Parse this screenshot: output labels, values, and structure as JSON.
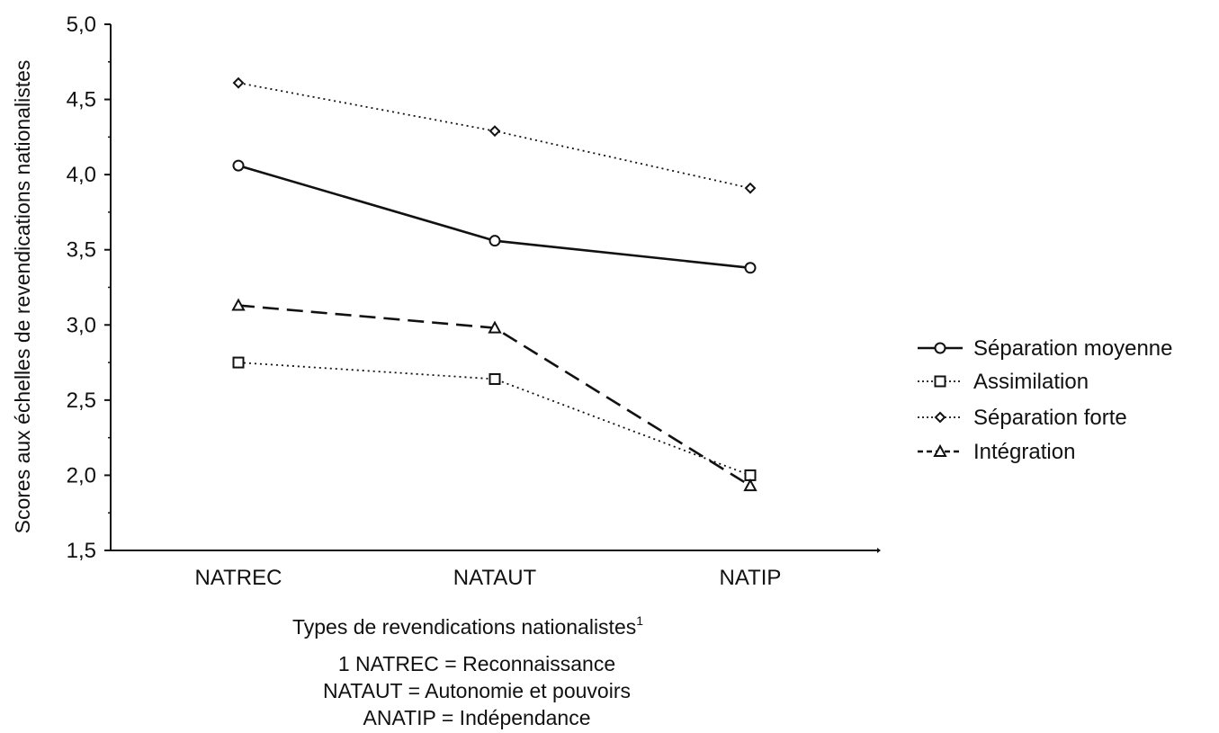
{
  "chart_data": {
    "type": "line",
    "title": "",
    "categories": [
      "NATREC",
      "NATAUT",
      "NATIP"
    ],
    "xlabel": "Types de revendications nationalistes",
    "xlabel_superscript": "1",
    "ylabel": "Scores aux échelles de revendications nationalistes",
    "ylim": [
      1.5,
      5.0
    ],
    "yticks": [
      1.5,
      2.0,
      2.5,
      3.0,
      3.5,
      4.0,
      4.5,
      5.0
    ],
    "ytick_labels": [
      "1,5",
      "2,0",
      "2,5",
      "3,0",
      "3,5",
      "4,0",
      "4,5",
      "5,0"
    ],
    "grid": false,
    "legend_position": "right",
    "series": [
      {
        "name": "Séparation moyenne",
        "values": [
          4.06,
          3.56,
          3.38
        ],
        "marker": "circle",
        "line_style": "solid"
      },
      {
        "name": "Assimilation",
        "values": [
          2.75,
          2.64,
          2.0
        ],
        "marker": "square",
        "line_style": "dotted"
      },
      {
        "name": "Séparation forte",
        "values": [
          4.61,
          4.29,
          3.91
        ],
        "marker": "diamond",
        "line_style": "dotted"
      },
      {
        "name": "Intégration",
        "values": [
          3.13,
          2.98,
          1.93
        ],
        "marker": "triangle",
        "line_style": "dashed"
      }
    ],
    "footnotes": [
      "1 NATREC = Reconnaissance",
      "NATAUT = Autonomie et pouvoirs",
      "ANATIP = Indépendance"
    ]
  }
}
